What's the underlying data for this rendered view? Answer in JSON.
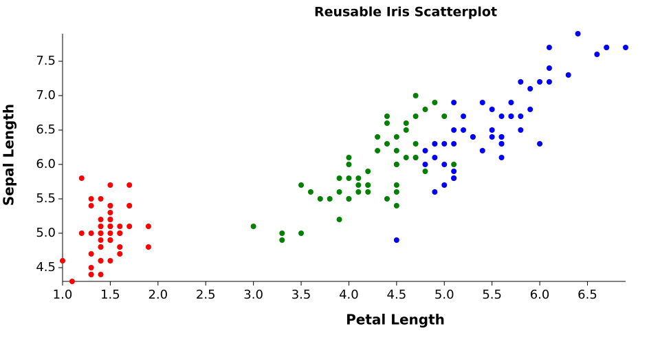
{
  "chart_data": {
    "type": "scatter",
    "title": "Reusable Iris Scatterplot",
    "xlabel": "Petal Length",
    "ylabel": "Sepal Length",
    "xlim": [
      1.0,
      6.9
    ],
    "ylim": [
      4.3,
      7.9
    ],
    "xticks": [
      {
        "value": 1.0,
        "label": "1.0"
      },
      1.5,
      {
        "value": 2.0,
        "label": "2.0"
      },
      2.5,
      {
        "value": 3.0,
        "label": "3.0"
      },
      3.5,
      {
        "value": 4.0,
        "label": "4.0"
      },
      4.5,
      {
        "value": 5.0,
        "label": "5.0"
      },
      5.5,
      {
        "value": 6.0,
        "label": "6.0"
      },
      6.5
    ],
    "yticks": [
      4.5,
      {
        "value": 5.0,
        "label": "5.0"
      },
      5.5,
      {
        "value": 6.0,
        "label": "6.0"
      },
      6.5,
      {
        "value": 7.0,
        "label": "7.0"
      },
      7.5
    ],
    "series": [
      {
        "color": "#ff0000",
        "x": [
          1.4,
          1.4,
          1.3,
          1.5,
          1.4,
          1.7,
          1.4,
          1.5,
          1.4,
          1.5,
          1.5,
          1.6,
          1.4,
          1.1,
          1.2,
          1.5,
          1.3,
          1.4,
          1.7,
          1.5,
          1.7,
          1.5,
          1.0,
          1.7,
          1.9,
          1.6,
          1.6,
          1.5,
          1.4,
          1.6,
          1.6,
          1.5,
          1.5,
          1.4,
          1.5,
          1.2,
          1.3,
          1.5,
          1.3,
          1.5,
          1.3,
          1.3,
          1.3,
          1.6,
          1.9,
          1.4,
          1.6,
          1.4,
          1.5,
          1.4
        ],
        "y": [
          5.1,
          4.9,
          4.7,
          4.6,
          5.0,
          5.4,
          4.6,
          5.0,
          4.4,
          4.9,
          5.4,
          4.8,
          4.8,
          4.3,
          5.8,
          5.7,
          5.4,
          5.1,
          5.7,
          5.1,
          5.4,
          5.1,
          4.6,
          5.1,
          4.8,
          5.0,
          5.0,
          5.2,
          5.2,
          4.7,
          4.8,
          5.4,
          5.2,
          5.5,
          4.9,
          5.0,
          5.5,
          4.9,
          4.4,
          5.1,
          5.0,
          4.5,
          4.4,
          5.0,
          5.1,
          4.8,
          5.1,
          4.6,
          5.3,
          5.0
        ]
      },
      {
        "color": "#008000",
        "x": [
          4.7,
          4.5,
          4.9,
          4.0,
          4.6,
          4.5,
          4.7,
          3.3,
          4.6,
          3.9,
          3.5,
          4.2,
          4.0,
          4.7,
          3.6,
          4.4,
          4.5,
          4.1,
          4.5,
          3.9,
          4.8,
          4.0,
          4.9,
          4.7,
          4.3,
          4.4,
          4.8,
          5.0,
          4.5,
          3.5,
          3.8,
          3.7,
          3.9,
          5.1,
          4.5,
          4.5,
          4.7,
          4.4,
          4.1,
          4.0,
          4.4,
          4.6,
          4.0,
          3.3,
          4.2,
          4.2,
          4.2,
          4.3,
          3.0,
          4.1
        ],
        "y": [
          7.0,
          6.4,
          6.9,
          5.5,
          6.5,
          5.7,
          6.3,
          4.9,
          6.6,
          5.2,
          5.0,
          5.9,
          6.0,
          6.1,
          5.6,
          6.7,
          5.6,
          5.8,
          6.2,
          5.6,
          5.9,
          6.1,
          6.3,
          6.1,
          6.4,
          6.6,
          6.8,
          6.7,
          6.0,
          5.7,
          5.5,
          5.5,
          5.8,
          6.0,
          5.4,
          6.0,
          6.7,
          6.3,
          5.6,
          5.5,
          5.5,
          6.1,
          5.8,
          5.0,
          5.6,
          5.7,
          5.7,
          6.2,
          5.1,
          5.7
        ]
      },
      {
        "color": "#0000ff",
        "x": [
          6.0,
          5.1,
          5.9,
          5.6,
          5.8,
          6.6,
          4.5,
          6.3,
          5.8,
          6.1,
          5.1,
          5.3,
          5.5,
          5.0,
          5.1,
          5.3,
          5.5,
          6.7,
          6.9,
          5.0,
          5.7,
          4.9,
          6.7,
          4.9,
          5.7,
          6.0,
          4.8,
          4.9,
          5.6,
          5.8,
          6.1,
          6.4,
          5.6,
          5.1,
          5.6,
          6.1,
          5.6,
          5.5,
          4.8,
          5.4,
          5.6,
          5.1,
          5.1,
          5.9,
          5.7,
          5.2,
          5.0,
          5.2,
          5.4,
          5.1
        ],
        "y": [
          6.3,
          5.8,
          7.1,
          6.3,
          6.5,
          7.6,
          4.9,
          7.3,
          6.7,
          7.2,
          6.5,
          6.4,
          6.8,
          5.7,
          5.8,
          6.4,
          6.5,
          7.7,
          7.7,
          6.0,
          6.9,
          5.6,
          7.7,
          6.3,
          6.7,
          7.2,
          6.2,
          6.1,
          6.4,
          7.2,
          7.4,
          7.9,
          6.4,
          6.3,
          6.1,
          7.7,
          6.3,
          6.4,
          6.0,
          6.9,
          6.7,
          6.9,
          5.8,
          6.8,
          6.7,
          6.7,
          6.3,
          6.5,
          6.2,
          5.9
        ]
      }
    ]
  }
}
